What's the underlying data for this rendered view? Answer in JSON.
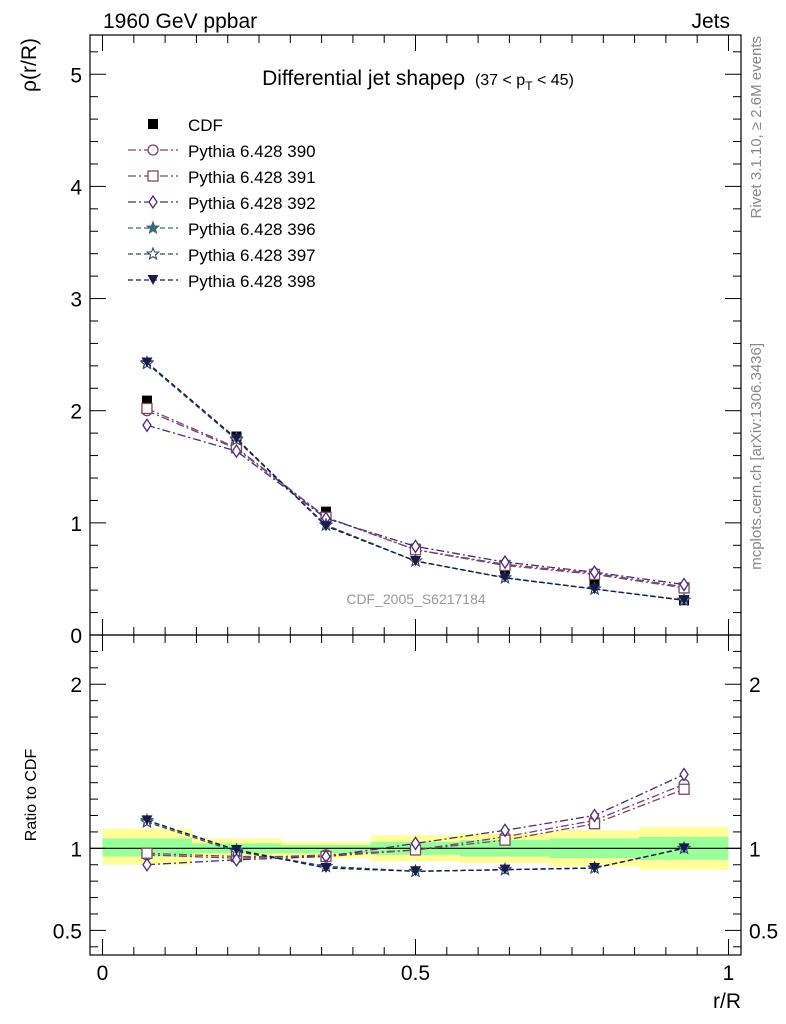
{
  "header": {
    "left": "1960 GeV ppbar",
    "right": "Jets"
  },
  "side_labels": {
    "rivet": "Rivet 3.1.10, ≥ 2.6M events",
    "mcplots": "mcplots.cern.ch [arXiv:1306.3436]"
  },
  "watermark": "CDF_2005_S6217184",
  "colors": {
    "cdf": "#000000",
    "p390": "#7b3f7b",
    "p391": "#7b4a5e",
    "p392": "#4b2a7b",
    "p396": "#3d6a7b",
    "p397": "#2f4f6f",
    "p398": "#1a1a4a",
    "band_inner": "#99ff99",
    "band_outer": "#ffff99"
  },
  "chart_data": [
    {
      "type": "line",
      "panel": "main",
      "title": "Differential jet shapeρ",
      "title_range": "(37 < p",
      "title_sub": "T",
      "title_range_end": " < 45)",
      "ylabel": "ρ(r/R)",
      "xlim": [
        -0.02,
        1.02
      ],
      "ylim": [
        0,
        5.35
      ],
      "y_ticks": [
        0,
        1,
        2,
        3,
        4,
        5
      ],
      "y_tick_labels": [
        "0",
        "1",
        "2",
        "3",
        "4",
        "5"
      ],
      "x": [
        0.071,
        0.214,
        0.357,
        0.5,
        0.643,
        0.786,
        0.929
      ],
      "series": [
        {
          "name": "CDF",
          "key": "cdf",
          "marker": "filled-square",
          "values": [
            2.09,
            1.77,
            1.1,
            0.77,
            0.59,
            0.47,
            0.31
          ]
        },
        {
          "name": "Pythia 6.428 390",
          "key": "p390",
          "marker": "open-circle",
          "dash": "dashdot",
          "values": [
            2.0,
            1.66,
            1.05,
            0.76,
            0.63,
            0.55,
            0.43
          ]
        },
        {
          "name": "Pythia 6.428 391",
          "key": "p391",
          "marker": "open-square",
          "dash": "dashdot",
          "values": [
            2.02,
            1.67,
            1.05,
            0.76,
            0.62,
            0.54,
            0.42
          ]
        },
        {
          "name": "Pythia 6.428 392",
          "key": "p392",
          "marker": "open-diamond",
          "dash": "dashdot",
          "values": [
            1.87,
            1.64,
            1.04,
            0.79,
            0.65,
            0.56,
            0.45
          ]
        },
        {
          "name": "Pythia 6.428 396",
          "key": "p396",
          "marker": "filled-star",
          "dash": "dashed",
          "values": [
            2.43,
            1.75,
            0.98,
            0.66,
            0.51,
            0.41,
            0.31
          ]
        },
        {
          "name": "Pythia 6.428 397",
          "key": "p397",
          "marker": "open-star",
          "dash": "dashed",
          "values": [
            2.42,
            1.74,
            0.98,
            0.66,
            0.51,
            0.41,
            0.31
          ]
        },
        {
          "name": "Pythia 6.428 398",
          "key": "p398",
          "marker": "filled-triangle-down",
          "dash": "dashed",
          "values": [
            2.43,
            1.75,
            0.97,
            0.66,
            0.51,
            0.41,
            0.31
          ]
        }
      ]
    },
    {
      "type": "line",
      "panel": "ratio",
      "ylabel": "Ratio to CDF",
      "xlabel": "r/R",
      "xlim": [
        -0.02,
        1.02
      ],
      "ylim": [
        0.35,
        2.3
      ],
      "y_ticks": [
        0.5,
        1,
        2
      ],
      "y_tick_labels": [
        "0.5",
        "1",
        "2"
      ],
      "x_ticks": [
        0,
        0.5,
        1
      ],
      "x_tick_labels": [
        "0",
        "0.5",
        "1"
      ],
      "x": [
        0.071,
        0.214,
        0.357,
        0.5,
        0.643,
        0.786,
        0.929
      ],
      "bins": [
        [
          0.0,
          0.143
        ],
        [
          0.143,
          0.286
        ],
        [
          0.286,
          0.429
        ],
        [
          0.429,
          0.571
        ],
        [
          0.571,
          0.714
        ],
        [
          0.714,
          0.857
        ],
        [
          0.857,
          1.0
        ]
      ],
      "band_inner": [
        [
          0.95,
          1.06
        ],
        [
          0.97,
          1.03
        ],
        [
          0.97,
          1.02
        ],
        [
          0.96,
          1.04
        ],
        [
          0.95,
          1.05
        ],
        [
          0.94,
          1.06
        ],
        [
          0.93,
          1.07
        ]
      ],
      "band_outer": [
        [
          0.9,
          1.12
        ],
        [
          0.94,
          1.06
        ],
        [
          0.94,
          1.04
        ],
        [
          0.92,
          1.08
        ],
        [
          0.91,
          1.09
        ],
        [
          0.89,
          1.11
        ],
        [
          0.87,
          1.13
        ]
      ],
      "series": [
        {
          "name": "Pythia 6.428 390",
          "key": "p390",
          "marker": "open-circle",
          "dash": "dashdot",
          "values": [
            0.96,
            0.94,
            0.96,
            0.99,
            1.07,
            1.17,
            1.39
          ]
        },
        {
          "name": "Pythia 6.428 391",
          "key": "p391",
          "marker": "open-square",
          "dash": "dashdot",
          "values": [
            0.97,
            0.95,
            0.95,
            0.99,
            1.05,
            1.15,
            1.36
          ]
        },
        {
          "name": "Pythia 6.428 392",
          "key": "p392",
          "marker": "open-diamond",
          "dash": "dashdot",
          "values": [
            0.9,
            0.93,
            0.95,
            1.03,
            1.11,
            1.2,
            1.45
          ]
        },
        {
          "name": "Pythia 6.428 396",
          "key": "p396",
          "marker": "filled-star",
          "dash": "dashed",
          "values": [
            1.17,
            0.99,
            0.89,
            0.86,
            0.87,
            0.88,
            1.0
          ]
        },
        {
          "name": "Pythia 6.428 397",
          "key": "p397",
          "marker": "open-star",
          "dash": "dashed",
          "values": [
            1.16,
            0.98,
            0.89,
            0.86,
            0.87,
            0.88,
            1.0
          ]
        },
        {
          "name": "Pythia 6.428 398",
          "key": "p398",
          "marker": "filled-triangle-down",
          "dash": "dashed",
          "values": [
            1.17,
            0.99,
            0.88,
            0.86,
            0.87,
            0.88,
            1.0
          ]
        }
      ]
    }
  ]
}
